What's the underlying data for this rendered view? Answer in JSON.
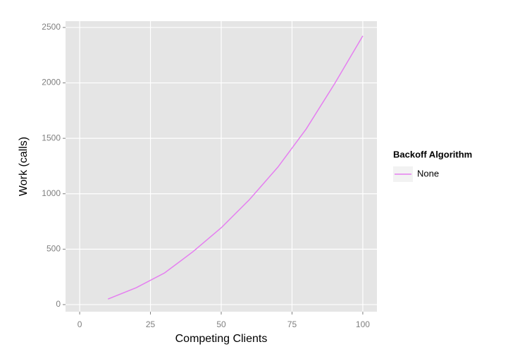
{
  "chart_data": {
    "type": "line",
    "x_label": "Competing Clients",
    "y_label": "Work (calls)",
    "x": [
      10,
      20,
      30,
      40,
      50,
      60,
      70,
      80,
      90,
      100
    ],
    "series": [
      {
        "name": "None",
        "color": "#e57ef0",
        "values": [
          50,
          153,
          286,
          477,
          693,
          948,
          1240,
          1584,
          1991,
          2424
        ]
      }
    ],
    "xlim": [
      -5,
      105
    ],
    "xticks": [
      0,
      25,
      50,
      75,
      100
    ],
    "ylim": [
      -64,
      2557
    ],
    "yticks": [
      0,
      500,
      1000,
      1500,
      2000,
      2500
    ],
    "grid": true,
    "legend_title": "Backoff Algorithm",
    "legend_position": "right"
  }
}
